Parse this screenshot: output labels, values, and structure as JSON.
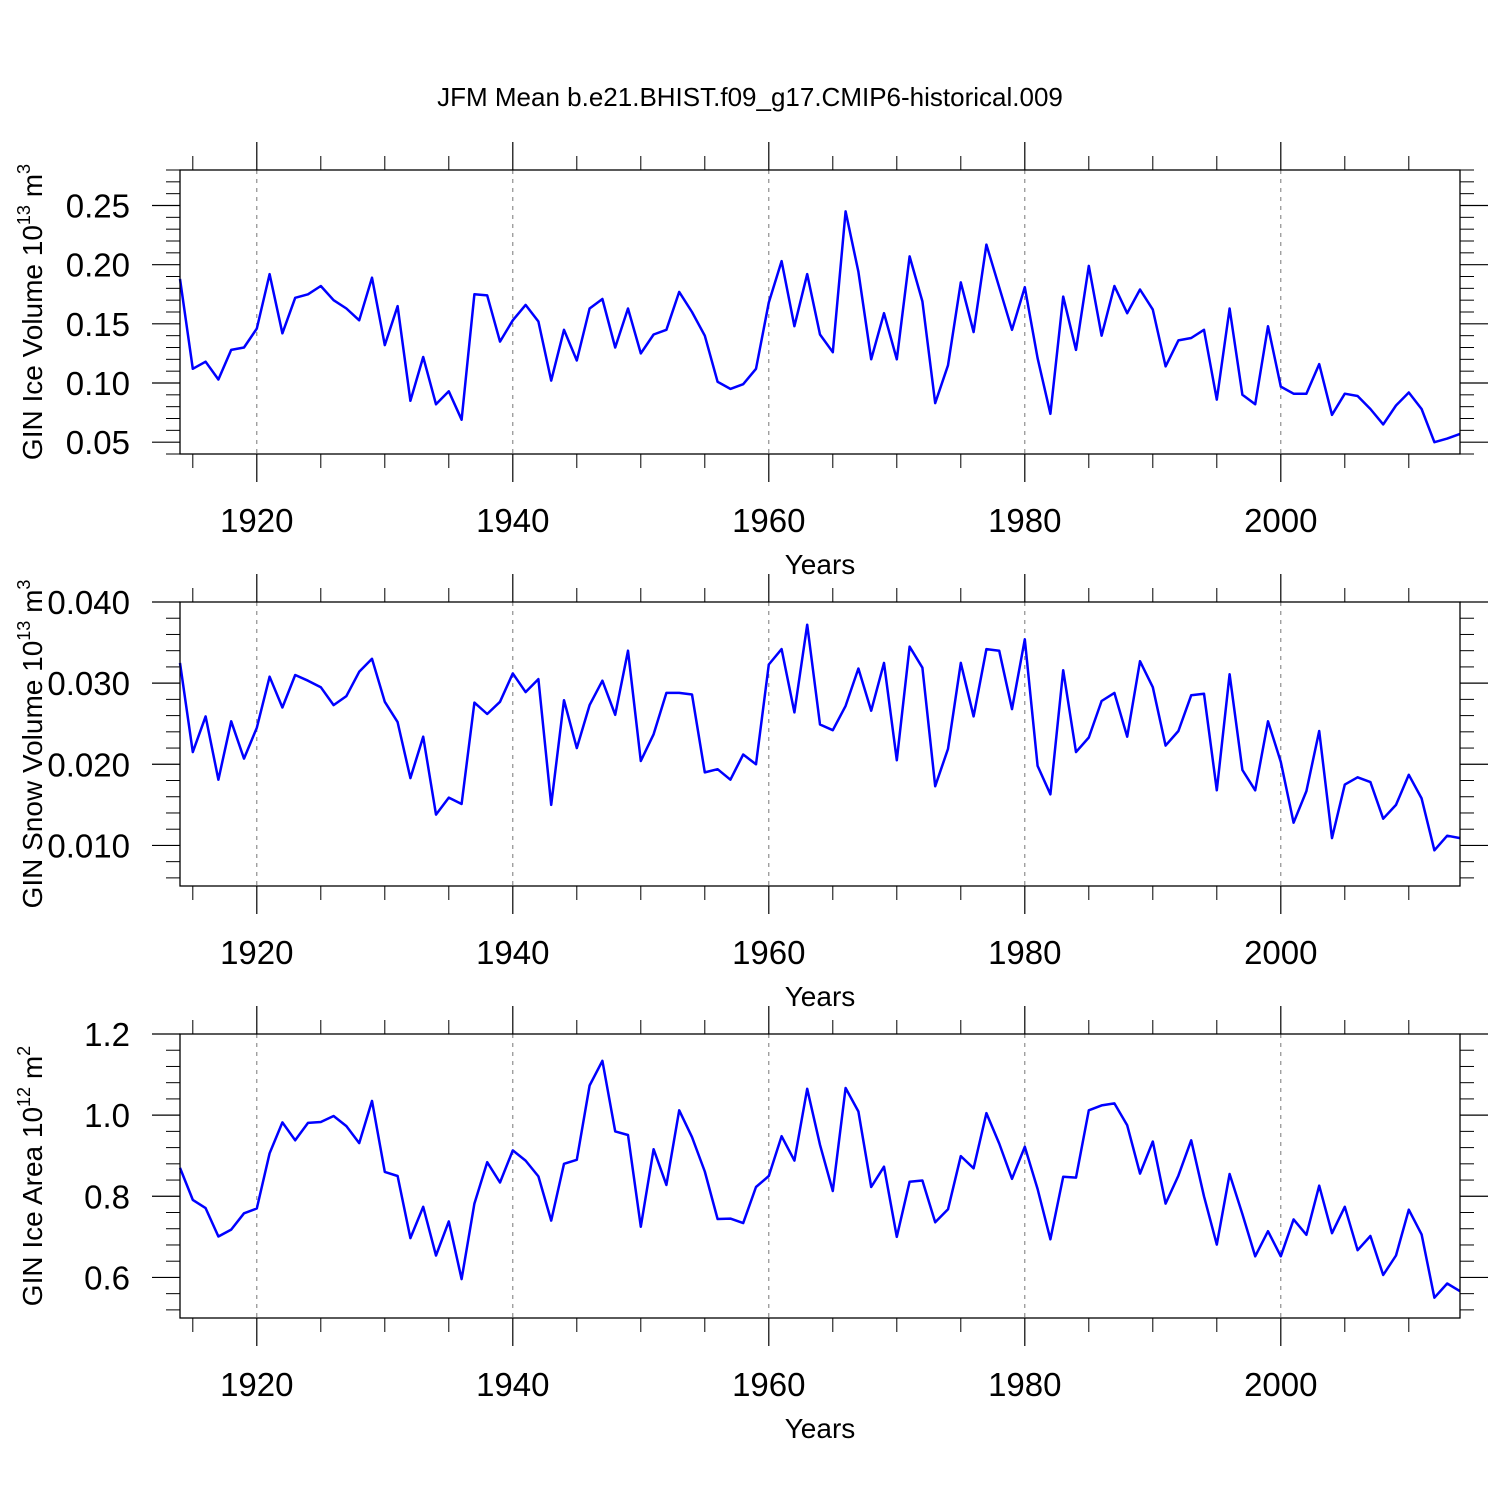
{
  "figure": {
    "title": "JFM Mean b.e21.BHIST.f09_g17.CMIP6-historical.009",
    "line_color": "#0000ff",
    "grid_color": "#777777"
  },
  "chart_data": [
    {
      "type": "line",
      "title": "",
      "xlabel": "Years",
      "ylabel": "GIN Ice Volume 10",
      "ylabel_exponent": "13",
      "ylabel_unit": "m",
      "ylabel_unit_exponent": "3",
      "xlim": [
        1914,
        2014
      ],
      "ylim": [
        0.04,
        0.28
      ],
      "x_ticks": [
        1920,
        1940,
        1960,
        1980,
        2000
      ],
      "x_tick_labels": [
        "1920",
        "1940",
        "1960",
        "1980",
        "2000"
      ],
      "y_ticks": [
        0.05,
        0.1,
        0.15,
        0.2,
        0.25
      ],
      "y_tick_labels": [
        "0.05",
        "0.10",
        "0.15",
        "0.20",
        "0.25"
      ],
      "y_minor_step": 0.01,
      "x_minor_step": 5,
      "grid": "vertical dashed at major x ticks",
      "x_start": 1914,
      "series": [
        {
          "name": "GIN Ice Volume",
          "values": [
            0.188,
            0.112,
            0.118,
            0.103,
            0.128,
            0.13,
            0.146,
            0.192,
            0.142,
            0.172,
            0.175,
            0.182,
            0.17,
            0.163,
            0.153,
            0.189,
            0.132,
            0.165,
            0.085,
            0.122,
            0.082,
            0.093,
            0.069,
            0.175,
            0.174,
            0.135,
            0.153,
            0.166,
            0.152,
            0.102,
            0.145,
            0.119,
            0.163,
            0.171,
            0.13,
            0.163,
            0.125,
            0.141,
            0.145,
            0.177,
            0.16,
            0.14,
            0.101,
            0.095,
            0.099,
            0.112,
            0.168,
            0.203,
            0.148,
            0.192,
            0.141,
            0.126,
            0.245,
            0.194,
            0.12,
            0.159,
            0.12,
            0.207,
            0.169,
            0.083,
            0.115,
            0.185,
            0.143,
            0.217,
            0.181,
            0.145,
            0.181,
            0.121,
            0.074,
            0.173,
            0.128,
            0.199,
            0.14,
            0.182,
            0.159,
            0.179,
            0.162,
            0.114,
            0.136,
            0.138,
            0.145,
            0.086,
            0.163,
            0.09,
            0.082,
            0.148,
            0.097,
            0.091,
            0.091,
            0.116,
            0.073,
            0.091,
            0.089,
            0.078,
            0.065,
            0.081,
            0.092,
            0.078,
            0.05,
            0.053,
            0.057
          ]
        }
      ]
    },
    {
      "type": "line",
      "title": "",
      "xlabel": "Years",
      "ylabel": "GIN Snow Volume 10",
      "ylabel_exponent": "13",
      "ylabel_unit": "m",
      "ylabel_unit_exponent": "3",
      "xlim": [
        1914,
        2014
      ],
      "ylim": [
        0.005,
        0.04
      ],
      "x_ticks": [
        1920,
        1940,
        1960,
        1980,
        2000
      ],
      "x_tick_labels": [
        "1920",
        "1940",
        "1960",
        "1980",
        "2000"
      ],
      "y_ticks": [
        0.01,
        0.02,
        0.03,
        0.04
      ],
      "y_tick_labels": [
        "0.010",
        "0.020",
        "0.030",
        "0.040"
      ],
      "y_minor_step": 0.002,
      "x_minor_step": 5,
      "grid": "vertical dashed at major x ticks",
      "x_start": 1914,
      "series": [
        {
          "name": "GIN Snow Volume",
          "values": [
            0.0325,
            0.0215,
            0.0259,
            0.0181,
            0.0253,
            0.0207,
            0.0245,
            0.0308,
            0.027,
            0.031,
            0.0303,
            0.0295,
            0.0273,
            0.0284,
            0.0314,
            0.033,
            0.0277,
            0.0252,
            0.0183,
            0.0234,
            0.0138,
            0.0159,
            0.0151,
            0.0276,
            0.0262,
            0.0277,
            0.0312,
            0.0289,
            0.0305,
            0.015,
            0.0279,
            0.022,
            0.0273,
            0.0303,
            0.0261,
            0.034,
            0.0204,
            0.0237,
            0.0288,
            0.0288,
            0.0286,
            0.019,
            0.0194,
            0.0181,
            0.0212,
            0.02,
            0.0323,
            0.0342,
            0.0264,
            0.0372,
            0.0249,
            0.0242,
            0.0272,
            0.0318,
            0.0266,
            0.0325,
            0.0205,
            0.0345,
            0.0319,
            0.0173,
            0.0219,
            0.0325,
            0.0259,
            0.0342,
            0.034,
            0.0268,
            0.0354,
            0.0198,
            0.0163,
            0.0316,
            0.0215,
            0.0233,
            0.0278,
            0.0288,
            0.0234,
            0.0327,
            0.0295,
            0.0223,
            0.0241,
            0.0285,
            0.0287,
            0.0168,
            0.0311,
            0.0193,
            0.0168,
            0.0253,
            0.0203,
            0.0128,
            0.0167,
            0.0241,
            0.0109,
            0.0175,
            0.0184,
            0.0178,
            0.0133,
            0.015,
            0.0187,
            0.0158,
            0.0094,
            0.0112,
            0.0109
          ]
        }
      ]
    },
    {
      "type": "line",
      "title": "",
      "xlabel": "Years",
      "ylabel": "GIN Ice Area 10",
      "ylabel_exponent": "12",
      "ylabel_unit": "m",
      "ylabel_unit_exponent": "2",
      "xlim": [
        1914,
        2014
      ],
      "ylim": [
        0.5,
        1.2
      ],
      "x_ticks": [
        1920,
        1940,
        1960,
        1980,
        2000
      ],
      "x_tick_labels": [
        "1920",
        "1940",
        "1960",
        "1980",
        "2000"
      ],
      "y_ticks": [
        0.6,
        0.8,
        1.0,
        1.2
      ],
      "y_tick_labels": [
        "0.6",
        "0.8",
        "1.0",
        "1.2"
      ],
      "y_minor_step": 0.04,
      "x_minor_step": 5,
      "grid": "vertical dashed at major x ticks",
      "x_start": 1914,
      "series": [
        {
          "name": "GIN Ice Area",
          "values": [
            0.87,
            0.791,
            0.771,
            0.701,
            0.718,
            0.758,
            0.77,
            0.906,
            0.982,
            0.938,
            0.981,
            0.983,
            0.998,
            0.973,
            0.931,
            1.035,
            0.86,
            0.85,
            0.697,
            0.774,
            0.654,
            0.738,
            0.596,
            0.782,
            0.884,
            0.834,
            0.913,
            0.888,
            0.849,
            0.74,
            0.88,
            0.89,
            1.073,
            1.134,
            0.96,
            0.951,
            0.725,
            0.916,
            0.828,
            1.012,
            0.946,
            0.861,
            0.744,
            0.745,
            0.734,
            0.823,
            0.85,
            0.948,
            0.888,
            1.065,
            0.927,
            0.813,
            1.067,
            1.009,
            0.823,
            0.873,
            0.7,
            0.836,
            0.839,
            0.736,
            0.768,
            0.899,
            0.869,
            1.005,
            0.93,
            0.843,
            0.922,
            0.818,
            0.694,
            0.848,
            0.846,
            1.012,
            1.024,
            1.029,
            0.975,
            0.856,
            0.935,
            0.782,
            0.851,
            0.938,
            0.8,
            0.681,
            0.855,
            0.756,
            0.652,
            0.714,
            0.652,
            0.743,
            0.705,
            0.826,
            0.709,
            0.774,
            0.667,
            0.702,
            0.606,
            0.654,
            0.767,
            0.706,
            0.55,
            0.585,
            0.566
          ]
        }
      ]
    }
  ]
}
